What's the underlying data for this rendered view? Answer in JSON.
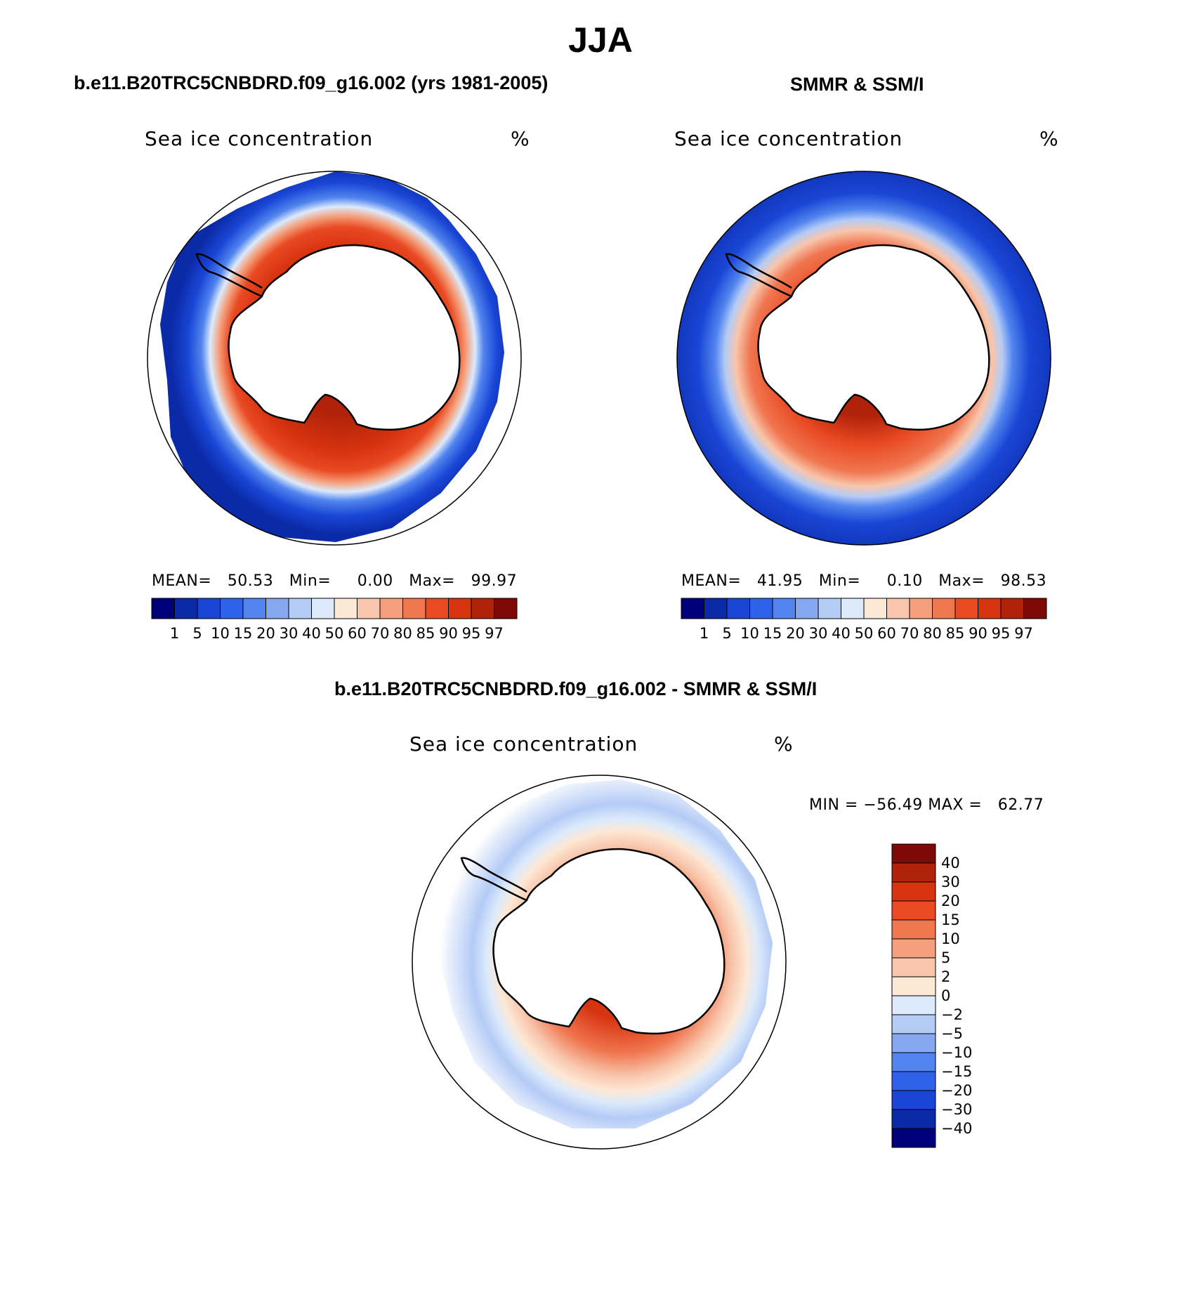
{
  "header": {
    "title": "JJA"
  },
  "panels": [
    {
      "id": "model",
      "title": "b.e11.B20TRC5CNBDRD.f09_g16.002 (yrs 1981-2005)",
      "label": "Sea ice concentration",
      "unit": "%",
      "stats": {
        "mean_label": "MEAN=",
        "mean": "50.53",
        "min_label": "Min=",
        "min": "0.00",
        "max_label": "Max=",
        "max": "99.97"
      }
    },
    {
      "id": "obs",
      "title": "SMMR & SSM/I",
      "label": "Sea ice concentration",
      "unit": "%",
      "stats": {
        "mean_label": "MEAN=",
        "mean": "41.95",
        "min_label": "Min=",
        "min": "0.10",
        "max_label": "Max=",
        "max": "98.53"
      }
    },
    {
      "id": "diff",
      "title": "b.e11.B20TRC5CNBDRD.f09_g16.002 - SMMR & SSM/I",
      "label": "Sea ice concentration",
      "unit": "%",
      "stats": {
        "min_label": "MIN =",
        "min": "−56.49",
        "max_label": "MAX =",
        "max": "62.77"
      }
    }
  ],
  "colorbar_concentration": {
    "ticks": [
      "1",
      "5",
      "10",
      "15",
      "20",
      "30",
      "40",
      "50",
      "60",
      "70",
      "80",
      "85",
      "90",
      "95",
      "97"
    ],
    "colors": [
      "#00007a",
      "#0a2aa8",
      "#1a46d6",
      "#2f62ea",
      "#5184ee",
      "#86a8f0",
      "#b4cbf6",
      "#dceafb",
      "#fde8d6",
      "#f8c6ac",
      "#f4a07c",
      "#f07650",
      "#e94a22",
      "#d6330f",
      "#b0220a",
      "#7d0a06"
    ]
  },
  "colorbar_difference": {
    "ticks": [
      "40",
      "30",
      "20",
      "15",
      "10",
      "5",
      "2",
      "0",
      "−2",
      "−5",
      "−10",
      "−15",
      "−20",
      "−30",
      "−40"
    ],
    "colors": [
      "#7d0a06",
      "#b0220a",
      "#d6330f",
      "#e94a22",
      "#f07650",
      "#f4a07c",
      "#f8c6ac",
      "#fde8d6",
      "#dceafb",
      "#b4cbf6",
      "#86a8f0",
      "#5184ee",
      "#2f62ea",
      "#1a46d6",
      "#0a2aa8",
      "#00007a"
    ]
  }
}
